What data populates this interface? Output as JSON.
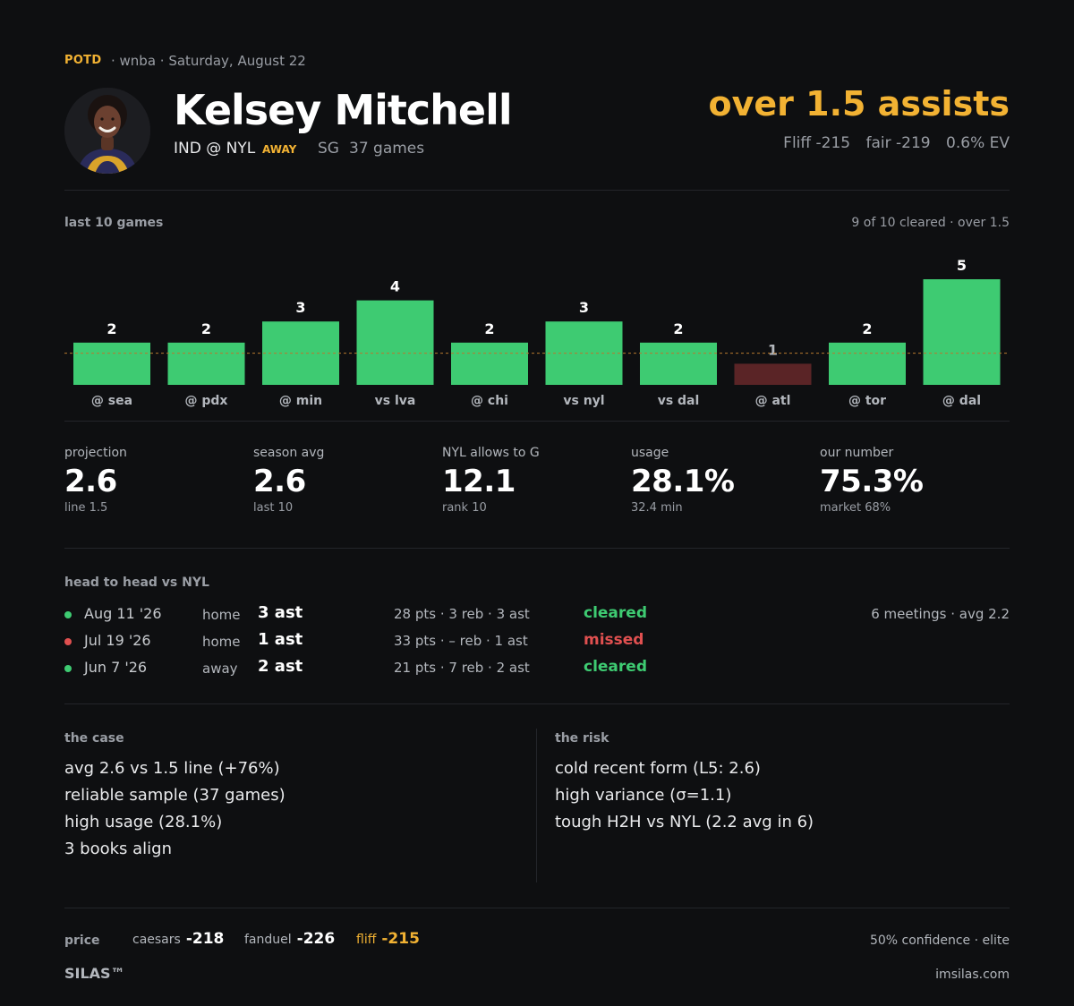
{
  "header": {
    "badge": "POTD",
    "meta": "· wnba · Saturday, August 22",
    "player_name": "Kelsey Mitchell",
    "matchup": "IND @ NYL",
    "away_tag": "AWAY",
    "position": "SG",
    "games": "37 games",
    "pick": "over 1.5 assists",
    "odds": {
      "book_price": "Fliff -215",
      "fair": "fair -219",
      "ev": "0.6% EV"
    }
  },
  "chart_section": {
    "title": "last 10 games",
    "summary": "9 of 10 cleared  ·  over 1.5"
  },
  "chart_data": {
    "type": "bar",
    "categories": [
      "@ sea",
      "@ pdx",
      "@ min",
      "vs lva",
      "@ chi",
      "vs nyl",
      "vs dal",
      "@ atl",
      "@ tor",
      "@ dal"
    ],
    "values": [
      2,
      2,
      3,
      4,
      2,
      3,
      2,
      1,
      2,
      5
    ],
    "threshold_line": 1.5,
    "title": "",
    "xlabel": "",
    "ylabel": "",
    "ylim": [
      0,
      5
    ],
    "grid": false,
    "colors": {
      "cleared": "#3ecb72",
      "missed": "#5a2426",
      "threshold": "#b7792e"
    }
  },
  "stats": [
    {
      "label": "projection",
      "value": "2.6",
      "sub": "line 1.5"
    },
    {
      "label": "season avg",
      "value": "2.6",
      "sub": "last 10"
    },
    {
      "label": "NYL allows to G",
      "value": "12.1",
      "sub": "rank 10"
    },
    {
      "label": "usage",
      "value": "28.1%",
      "sub": "32.4 min"
    },
    {
      "label": "our number",
      "value": "75.3%",
      "sub": "market 68%"
    }
  ],
  "h2h": {
    "title": "head to head vs NYL",
    "summary": "6 meetings · avg 2.2",
    "rows": [
      {
        "date": "Aug 11 '26",
        "venue": "home",
        "ast": "3 ast",
        "line": "28 pts · 3 reb · 3 ast",
        "result": "cleared",
        "status": "cleared"
      },
      {
        "date": "Jul 19 '26",
        "venue": "home",
        "ast": "1 ast",
        "line": "33 pts · – reb · 1 ast",
        "result": "missed",
        "status": "missed"
      },
      {
        "date": "Jun 7 '26",
        "venue": "away",
        "ast": "2 ast",
        "line": "21 pts · 7 reb · 2 ast",
        "result": "cleared",
        "status": "cleared"
      }
    ]
  },
  "case": {
    "title": "the case",
    "items": [
      "avg 2.6 vs 1.5 line (+76%)",
      "reliable sample (37 games)",
      "high usage (28.1%)",
      "3 books align"
    ]
  },
  "risk": {
    "title": "the risk",
    "items": [
      "cold recent form (L5: 2.6)",
      "high variance (σ=1.1)",
      "tough H2H vs NYL (2.2 avg in 6)"
    ]
  },
  "footer": {
    "price_label": "price",
    "books": [
      {
        "name": "caesars",
        "odds": "-218"
      },
      {
        "name": "fanduel",
        "odds": "-226"
      },
      {
        "name": "fliff",
        "odds": "-215"
      }
    ],
    "confidence": "50% confidence · elite",
    "brand": "SILAS™",
    "site": "imsilas.com"
  }
}
